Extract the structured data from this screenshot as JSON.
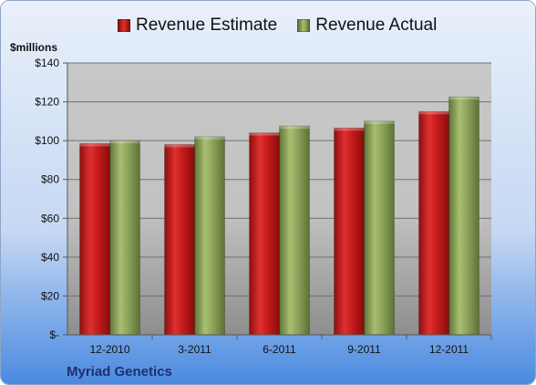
{
  "colors": {
    "estimate": "#c21a1a",
    "actual": "#8da35a",
    "background_top": "#e6eefb",
    "background_bottom": "#4a8ae0",
    "plot_top": "#c9c9c9",
    "plot_bottom": "#8a8a8a"
  },
  "chart_data": {
    "type": "bar",
    "title": "",
    "ylabel": "$millions",
    "xlabel": "",
    "categories": [
      "12-2010",
      "3-2011",
      "6-2011",
      "9-2011",
      "12-2011"
    ],
    "series": [
      {
        "name": "Revenue Estimate",
        "values": [
          98.5,
          98,
          104,
          106.5,
          115
        ]
      },
      {
        "name": "Revenue Actual",
        "values": [
          100,
          102,
          107.5,
          110,
          122.5
        ]
      }
    ],
    "ylim": [
      0,
      140
    ],
    "yticks": [
      0,
      20,
      40,
      60,
      80,
      100,
      120,
      140
    ],
    "ytick_labels": [
      "$-",
      "$20",
      "$40",
      "$60",
      "$80",
      "$100",
      "$120",
      "$140"
    ],
    "grid": true,
    "legend_position": "top",
    "footer": "Myriad Genetics"
  }
}
